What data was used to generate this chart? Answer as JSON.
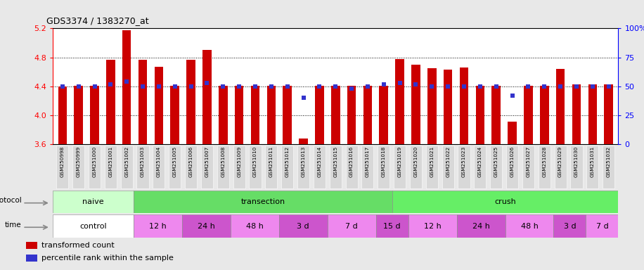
{
  "title": "GDS3374 / 1383270_at",
  "samples": [
    "GSM250998",
    "GSM250999",
    "GSM251000",
    "GSM251001",
    "GSM251002",
    "GSM251003",
    "GSM251004",
    "GSM251005",
    "GSM251006",
    "GSM251007",
    "GSM251008",
    "GSM251009",
    "GSM251010",
    "GSM251011",
    "GSM251012",
    "GSM251013",
    "GSM251014",
    "GSM251015",
    "GSM251016",
    "GSM251017",
    "GSM251018",
    "GSM251019",
    "GSM251020",
    "GSM251021",
    "GSM251022",
    "GSM251023",
    "GSM251024",
    "GSM251025",
    "GSM251026",
    "GSM251027",
    "GSM251028",
    "GSM251029",
    "GSM251030",
    "GSM251031",
    "GSM251032"
  ],
  "bar_values": [
    4.4,
    4.41,
    4.41,
    4.77,
    5.17,
    4.77,
    4.67,
    4.41,
    4.77,
    4.9,
    4.41,
    4.41,
    4.41,
    4.41,
    4.41,
    3.68,
    4.41,
    4.41,
    4.41,
    4.41,
    4.41,
    4.78,
    4.7,
    4.65,
    4.63,
    4.66,
    4.41,
    4.41,
    3.91,
    4.41,
    4.41,
    4.64,
    4.43,
    4.43,
    4.43
  ],
  "percentile_values": [
    50,
    50,
    50,
    52,
    54,
    50,
    50,
    50,
    50,
    53,
    50,
    50,
    50,
    50,
    50,
    40,
    50,
    50,
    48,
    50,
    52,
    53,
    52,
    50,
    50,
    50,
    50,
    50,
    42,
    50,
    50,
    50,
    50,
    50,
    50
  ],
  "ylim": [
    3.6,
    5.2
  ],
  "ylim_right": [
    0,
    100
  ],
  "yticks_left": [
    3.6,
    4.0,
    4.4,
    4.8,
    5.2
  ],
  "yticks_right": [
    0,
    25,
    50,
    75,
    100
  ],
  "bar_color": "#cc0000",
  "dot_color": "#3333cc",
  "bg_color": "#e8e8e8",
  "chart_bg": "#ffffff",
  "protocol_groups": [
    {
      "label": "naive",
      "start": 0,
      "end": 5,
      "color": "#ccffcc"
    },
    {
      "label": "transection",
      "start": 5,
      "end": 21,
      "color": "#66dd66"
    },
    {
      "label": "crush",
      "start": 21,
      "end": 35,
      "color": "#66ee66"
    }
  ],
  "time_groups": [
    {
      "label": "control",
      "start": 0,
      "end": 5,
      "color": "#ffffff"
    },
    {
      "label": "12 h",
      "start": 5,
      "end": 8,
      "color": "#ee88ee"
    },
    {
      "label": "24 h",
      "start": 8,
      "end": 11,
      "color": "#cc55cc"
    },
    {
      "label": "48 h",
      "start": 11,
      "end": 14,
      "color": "#ee88ee"
    },
    {
      "label": "3 d",
      "start": 14,
      "end": 17,
      "color": "#cc55cc"
    },
    {
      "label": "7 d",
      "start": 17,
      "end": 20,
      "color": "#ee88ee"
    },
    {
      "label": "15 d",
      "start": 20,
      "end": 22,
      "color": "#cc55cc"
    },
    {
      "label": "12 h",
      "start": 22,
      "end": 25,
      "color": "#ee88ee"
    },
    {
      "label": "24 h",
      "start": 25,
      "end": 28,
      "color": "#cc55cc"
    },
    {
      "label": "48 h",
      "start": 28,
      "end": 31,
      "color": "#ee88ee"
    },
    {
      "label": "3 d",
      "start": 31,
      "end": 33,
      "color": "#cc55cc"
    },
    {
      "label": "7 d",
      "start": 33,
      "end": 35,
      "color": "#ee88ee"
    }
  ]
}
